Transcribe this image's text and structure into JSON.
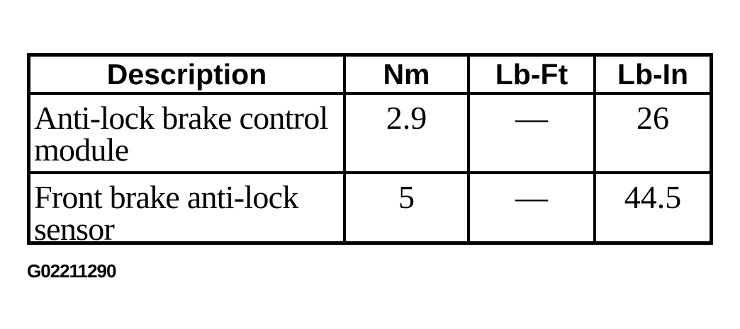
{
  "table": {
    "headers": [
      "Description",
      "Nm",
      "Lb-Ft",
      "Lb-In"
    ],
    "rows": [
      {
        "cells": [
          "Anti-lock brake control module",
          "2.9",
          "—",
          "26"
        ]
      },
      {
        "cells": [
          "Front brake anti-lock sensor",
          "5",
          "—",
          "44.5"
        ]
      }
    ]
  },
  "caption": "G02211290",
  "colors": {
    "ink": "#000000",
    "background": "#ffffff"
  }
}
